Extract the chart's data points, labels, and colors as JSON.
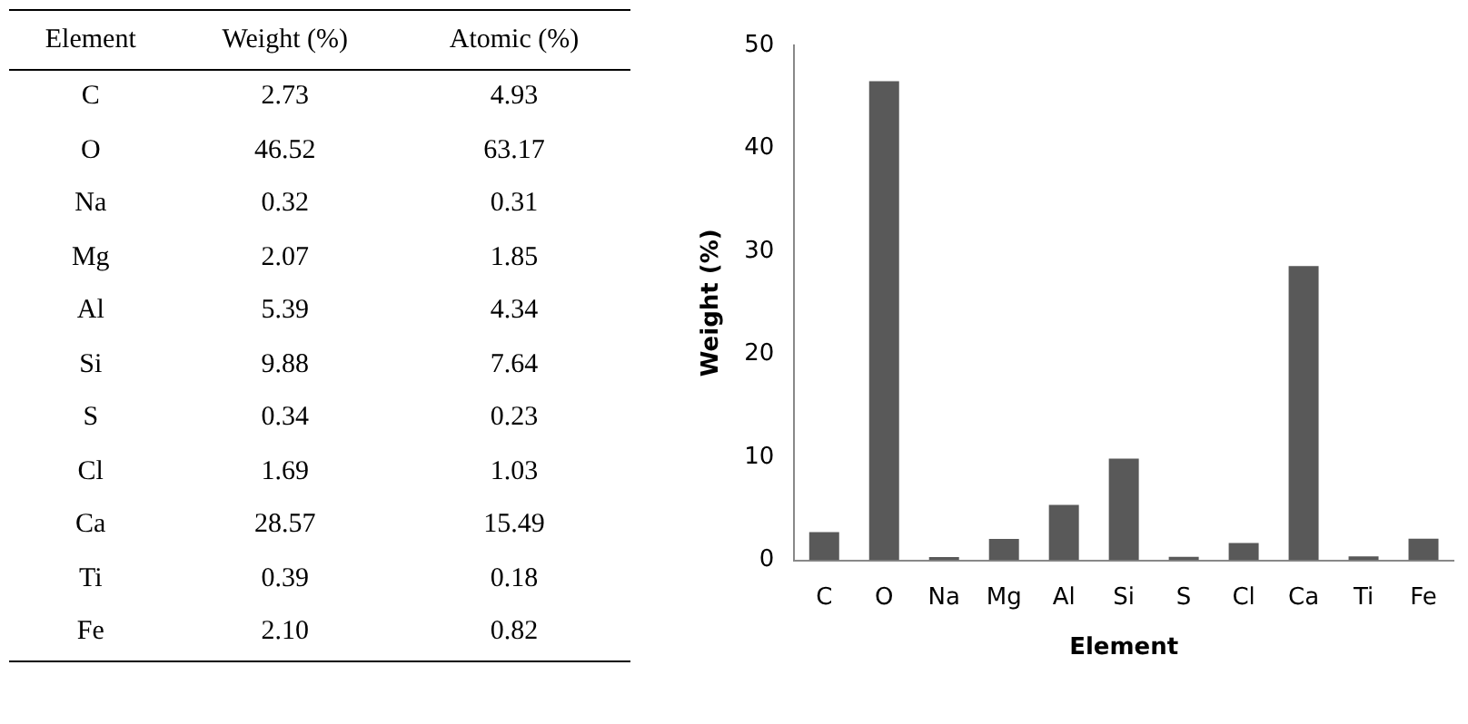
{
  "chart_data": [
    {
      "type": "other",
      "annotations": [
        "Element",
        "Weight (%)",
        "Atomic (%)",
        "C",
        "2.73",
        "4.93",
        "O",
        "46.52",
        "63.17",
        "Na",
        "0.32",
        "0.31",
        "Mg",
        "2.07",
        "1.85",
        "Al",
        "5.39",
        "4.34",
        "Si",
        "9.88",
        "7.64",
        "S",
        "0.34",
        "0.23",
        "Cl",
        "1.69",
        "1.03",
        "Ca",
        "28.57",
        "15.49",
        "Ti",
        "0.39",
        "0.18",
        "Fe",
        "2.10",
        "0.82"
      ]
    },
    {
      "type": "bar",
      "categories": [
        "C",
        "O",
        "Na",
        "Mg",
        "Al",
        "Si",
        "S",
        "Cl",
        "Ca",
        "Ti",
        "Fe"
      ],
      "values": [
        2.73,
        46.52,
        0.32,
        2.07,
        5.39,
        9.88,
        0.34,
        1.69,
        28.57,
        0.39,
        2.1
      ],
      "color": "#595959",
      "xlabel": "Element",
      "ylabel": "Weight (%)",
      "ylim": [
        0,
        50
      ],
      "yticks": [
        0,
        10,
        20,
        30,
        40,
        50
      ],
      "grid": false,
      "legend": false
    }
  ]
}
